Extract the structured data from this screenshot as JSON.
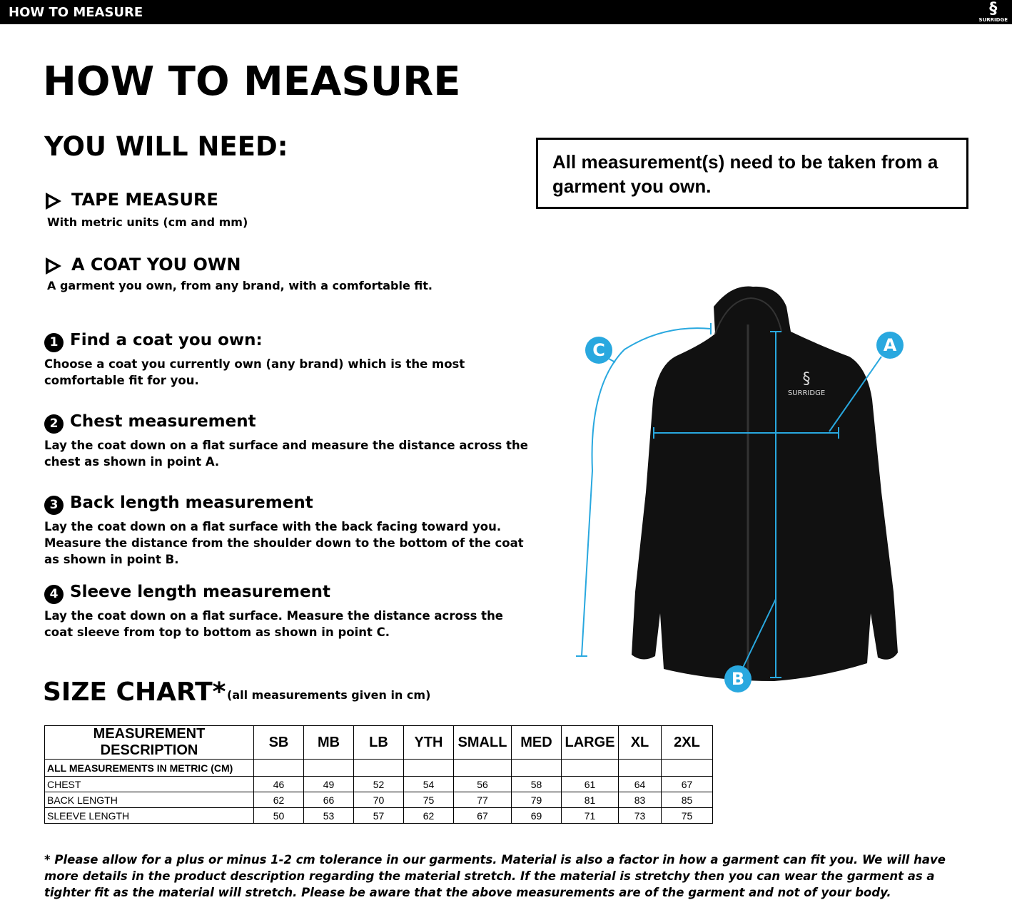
{
  "header": {
    "bar_title": "HOW TO MEASURE",
    "logo": "SURRIDGE"
  },
  "title": "HOW TO MEASURE",
  "needs": {
    "heading": "YOU WILL NEED:",
    "items": [
      {
        "title": "TAPE MEASURE",
        "text": "With metric units (cm and mm)"
      },
      {
        "title": "A COAT YOU OWN",
        "text": "A garment you own, from any brand, with a comfortable fit."
      }
    ]
  },
  "notice": "All measurement(s) need to be taken from a garment you own.",
  "steps": [
    {
      "number": "1",
      "title": "Find a coat you own:",
      "text": "Choose a coat you currently own (any brand) which is the most comfortable fit for you."
    },
    {
      "number": "2",
      "title": "Chest measurement",
      "text": "Lay the coat down on a flat surface and measure the distance across the chest as shown in point A."
    },
    {
      "number": "3",
      "title": "Back length measurement",
      "text": "Lay the coat down on a flat surface with the back facing toward you. Measure the distance from the shoulder down to the bottom of the coat as shown in point B."
    },
    {
      "number": "4",
      "title": "Sleeve length measurement",
      "text": "Lay the coat down on a flat surface. Measure the distance across the coat sleeve from top to bottom as shown in point C."
    }
  ],
  "diagram": {
    "brand": "SURRIDGE",
    "labels": [
      "C",
      "A",
      "B"
    ]
  },
  "size_chart": {
    "title": "SIZE CHART*",
    "note": "(all measurements given in cm)",
    "header": [
      "MEASUREMENT DESCRIPTION",
      "SB",
      "MB",
      "LB",
      "YTH",
      "SMALL",
      "MED",
      "LARGE",
      "XL",
      "2XL"
    ],
    "subheader": "ALL MEASUREMENTS IN METRIC (CM)",
    "rows": [
      {
        "label": "CHEST",
        "values": [
          46,
          49,
          52,
          54,
          56,
          58,
          61,
          64,
          67
        ]
      },
      {
        "label": "BACK LENGTH",
        "values": [
          62,
          66,
          70,
          75,
          77,
          79,
          81,
          83,
          85
        ]
      },
      {
        "label": "SLEEVE LENGTH",
        "values": [
          50,
          53,
          57,
          62,
          67,
          69,
          71,
          73,
          75
        ]
      }
    ]
  },
  "footnote": "* Please allow for a plus or minus 1-2 cm tolerance in our garments. Material is also a factor in how a garment can fit you. We will have more details in the product description regarding the material stretch.  If the material is stretchy then you can wear the garment as a tighter fit as the material will stretch.  Please be aware that the above measurements are of the garment and not of your body."
}
